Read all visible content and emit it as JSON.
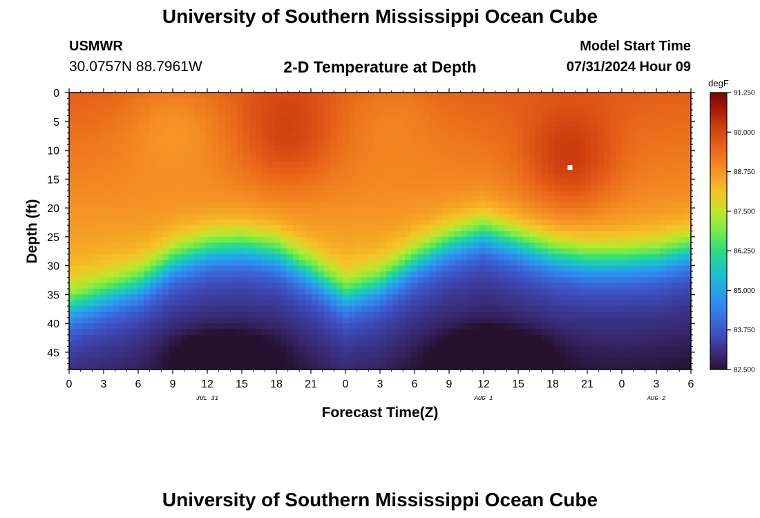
{
  "header": {
    "title": "University of Southern Mississippi Ocean Cube",
    "station": "USMWR",
    "coords": "30.0757N  88.7961W",
    "chart_title": "2-D Temperature at Depth",
    "start_label": "Model Start Time",
    "start_value": "07/31/2024 Hour 09"
  },
  "footer": {
    "title": "University of Southern Mississippi Ocean Cube"
  },
  "chart_data": {
    "type": "heatmap",
    "title": "2-D Temperature at Depth",
    "xlabel": "Forecast Time(Z)",
    "ylabel": "Depth (ft)",
    "x_hours_range": [
      0,
      54
    ],
    "x_tick_labels": [
      "0",
      "3",
      "6",
      "9",
      "12",
      "15",
      "18",
      "21",
      "0",
      "3",
      "6",
      "9",
      "12",
      "15",
      "18",
      "21",
      "0",
      "3",
      "6"
    ],
    "date_labels": [
      {
        "label": "JUL 31",
        "hour": 12
      },
      {
        "label": "AUG 1",
        "hour": 36
      },
      {
        "label": "AUG 2",
        "hour": 51
      }
    ],
    "depth_range_ft": [
      0,
      48
    ],
    "y_tick_labels": [
      "0",
      "5",
      "10",
      "15",
      "20",
      "25",
      "30",
      "35",
      "40",
      "45"
    ],
    "y_tick_values": [
      0,
      5,
      10,
      15,
      20,
      25,
      30,
      35,
      40,
      45
    ],
    "colorbar": {
      "unit": "degF",
      "min": 82.5,
      "max": 91.25,
      "tick_labels": [
        "91.250",
        "90.000",
        "88.750",
        "87.500",
        "86.250",
        "85.000",
        "83.750",
        "82.500"
      ],
      "tick_values": [
        91.25,
        90.0,
        88.75,
        87.5,
        86.25,
        85.0,
        83.75,
        82.5
      ]
    },
    "thermocline_depth_ft": {
      "hours": [
        0,
        3,
        6,
        8,
        9,
        12,
        15,
        18,
        21,
        24,
        27,
        30,
        33,
        36,
        39,
        42,
        45,
        48,
        51,
        54
      ],
      "values": [
        37,
        35,
        33,
        30.5,
        29,
        27,
        26.5,
        27.5,
        31,
        35,
        33,
        29,
        26,
        24,
        26,
        28,
        29,
        29,
        28.5,
        27
      ]
    },
    "surface_features": [
      {
        "kind": "warm",
        "hour": 19,
        "depth_ft": 8,
        "strength": 0.8
      },
      {
        "kind": "warm",
        "hour": 43.5,
        "depth_ft": 12,
        "strength": 1.1
      },
      {
        "kind": "cool",
        "hour": 9,
        "depth_ft": 5,
        "strength": 0.6
      },
      {
        "kind": "cool",
        "hour": 28,
        "depth_ft": 3,
        "strength": 0.4
      }
    ],
    "deep_features": [
      {
        "kind": "cold",
        "hour": 13.5,
        "depth_ft": 45,
        "strength": 0.8
      },
      {
        "kind": "cold",
        "hour": 37,
        "depth_ft": 45,
        "strength": 1.0
      }
    ],
    "max_marker": {
      "hour": 43.5,
      "depth_ft": 13
    }
  }
}
